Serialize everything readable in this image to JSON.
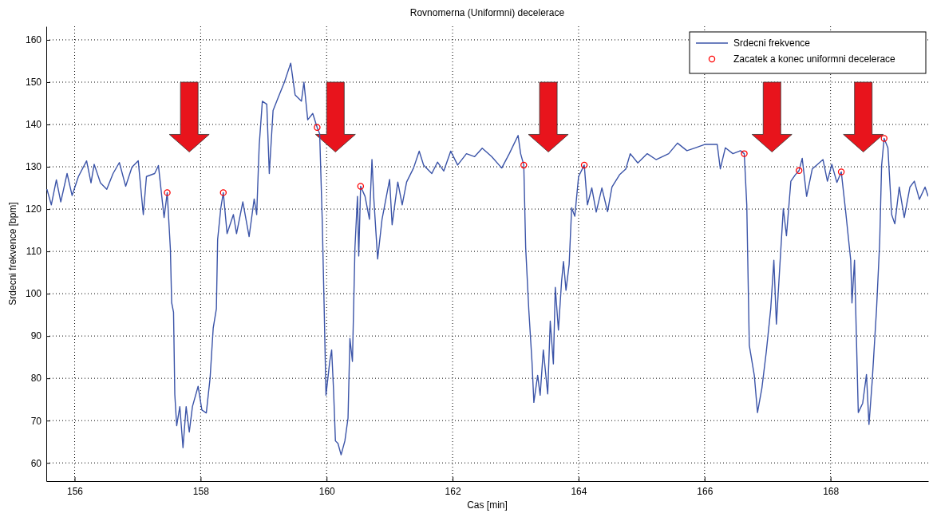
{
  "chart_data": {
    "type": "line",
    "title": "Rovnomerna (Uniformni) decelerace",
    "xlabel": "Cas [min]",
    "ylabel": "Srdecni frekvence [bpm]",
    "xlim": [
      155.55,
      169.55
    ],
    "ylim": [
      55.7,
      163.2
    ],
    "xticks": [
      156,
      158,
      160,
      162,
      164,
      166,
      168
    ],
    "yticks": [
      60,
      70,
      80,
      90,
      100,
      110,
      120,
      130,
      140,
      150,
      160
    ],
    "grid": true,
    "legend": "top right",
    "series": [
      {
        "name": "Srdecni frekvence",
        "type": "line",
        "color": "#3b54a8",
        "line_style": "solid",
        "marker": "none",
        "x": [
          155.56,
          155.63,
          155.71,
          155.78,
          155.88,
          155.96,
          156.06,
          156.19,
          156.26,
          156.31,
          156.41,
          156.51,
          156.61,
          156.71,
          156.81,
          156.91,
          157.01,
          157.09,
          157.14,
          157.27,
          157.33,
          157.42,
          157.47,
          157.52,
          157.54,
          157.57,
          157.59,
          157.62,
          157.67,
          157.72,
          157.77,
          157.82,
          157.87,
          157.96,
          158.02,
          158.09,
          158.15,
          158.2,
          158.25,
          158.27,
          158.32,
          158.36,
          158.42,
          158.52,
          158.57,
          158.67,
          158.77,
          158.85,
          158.89,
          158.93,
          158.98,
          159.05,
          159.09,
          159.15,
          159.23,
          159.33,
          159.43,
          159.5,
          159.6,
          159.64,
          159.7,
          159.78,
          159.85,
          159.89,
          159.93,
          159.96,
          159.99,
          160.05,
          160.08,
          160.11,
          160.14,
          160.18,
          160.23,
          160.29,
          160.34,
          160.37,
          160.41,
          160.45,
          160.49,
          160.51,
          160.54,
          160.61,
          160.68,
          160.72,
          160.75,
          160.81,
          160.88,
          161,
          161.04,
          161.13,
          161.2,
          161.27,
          161.38,
          161.47,
          161.54,
          161.67,
          161.76,
          161.86,
          161.97,
          162.08,
          162.22,
          162.35,
          162.47,
          162.62,
          162.78,
          162.9,
          163.04,
          163.08,
          163.13,
          163.16,
          163.21,
          163.26,
          163.29,
          163.35,
          163.39,
          163.44,
          163.51,
          163.55,
          163.6,
          163.63,
          163.68,
          163.73,
          163.76,
          163.8,
          163.85,
          163.89,
          163.94,
          164,
          164.09,
          164.14,
          164.21,
          164.28,
          164.37,
          164.46,
          164.53,
          164.65,
          164.75,
          164.82,
          164.94,
          165.09,
          165.23,
          165.43,
          165.57,
          165.72,
          165.86,
          166.01,
          166.2,
          166.25,
          166.33,
          166.45,
          166.57,
          166.63,
          166.67,
          166.71,
          166.79,
          166.84,
          166.91,
          166.98,
          167.05,
          167.1,
          167.14,
          167.2,
          167.25,
          167.3,
          167.37,
          167.44,
          167.5,
          167.55,
          167.62,
          167.71,
          167.88,
          167.95,
          168.02,
          168.1,
          168.17,
          168.24,
          168.32,
          168.34,
          168.38,
          168.44,
          168.51,
          168.57,
          168.61,
          168.66,
          168.73,
          168.78,
          168.81,
          168.85,
          168.91,
          168.97,
          169.02,
          169.09,
          169.17,
          169.26,
          169.33,
          169.41,
          169.5,
          169.55
        ],
        "values": [
          124.7,
          121,
          126.9,
          121.7,
          128.4,
          123.2,
          127.7,
          131.4,
          126.2,
          130.6,
          126.2,
          124.7,
          128.4,
          131,
          125.4,
          129.9,
          131.4,
          118.7,
          127.7,
          128.4,
          130.3,
          118,
          123.9,
          110.5,
          97.9,
          95.6,
          76.2,
          68.8,
          73.3,
          63.6,
          73.3,
          67.3,
          73.3,
          78.1,
          72.5,
          71.8,
          80,
          91.9,
          96.4,
          112.8,
          120.2,
          123.9,
          114.2,
          118.7,
          114.2,
          121.7,
          113.5,
          122.4,
          118.7,
          135.1,
          145.5,
          144.8,
          128.4,
          143.3,
          146.3,
          150,
          154.5,
          147,
          145.5,
          150,
          141.1,
          142.6,
          139.3,
          137.8,
          117.6,
          97.5,
          76,
          84,
          86.7,
          77.3,
          65.2,
          64.6,
          61.9,
          65.2,
          70.6,
          89.4,
          84,
          110.9,
          123,
          108.9,
          125.4,
          123,
          117.6,
          131.7,
          122.3,
          108.2,
          117.6,
          127,
          116.3,
          126.4,
          121,
          126.4,
          129.7,
          133.7,
          130.4,
          128.4,
          131.1,
          129,
          133.7,
          130.4,
          133.1,
          132.4,
          134.4,
          132.4,
          129.7,
          133.1,
          137.4,
          133.1,
          130.4,
          110.9,
          96.1,
          84,
          74.3,
          80.7,
          76,
          86.7,
          76.3,
          93.5,
          83.4,
          101.5,
          91.4,
          102.9,
          107.6,
          100.8,
          106.9,
          120.3,
          118.3,
          127.7,
          130.4,
          121,
          125,
          119.3,
          125,
          119.4,
          125.2,
          128.1,
          129.5,
          133.1,
          130.9,
          133.1,
          131.7,
          133.1,
          135.6,
          133.8,
          134.5,
          135.3,
          135.3,
          129.5,
          134.5,
          133.1,
          133.8,
          133.1,
          120.9,
          87.8,
          80.6,
          71.9,
          77.7,
          86.3,
          96.4,
          107.9,
          92.8,
          107.9,
          120.1,
          113.7,
          126.6,
          128.1,
          129.1,
          132,
          123,
          129.5,
          131.7,
          126.6,
          130.6,
          126.3,
          128.8,
          119.4,
          107.9,
          97.8,
          107.9,
          71.9,
          74.1,
          80.9,
          69.1,
          79.1,
          96.4,
          112.2,
          130.2,
          136.7,
          134.5,
          118.7,
          116.5,
          125.2,
          118,
          125.2,
          126.6,
          122.3,
          125.2,
          123
        ]
      },
      {
        "name": "Zacatek a konec uniformni decelerace",
        "type": "scatter",
        "color": "#ff0000",
        "marker": "circle",
        "x": [
          157.47,
          158.36,
          159.85,
          160.54,
          163.13,
          164.09,
          166.63,
          167.5,
          168.17,
          168.85
        ],
        "values": [
          123.9,
          123.9,
          139.3,
          125.4,
          130.4,
          130.4,
          133.1,
          129.1,
          128.8,
          136.7
        ]
      }
    ]
  }
}
